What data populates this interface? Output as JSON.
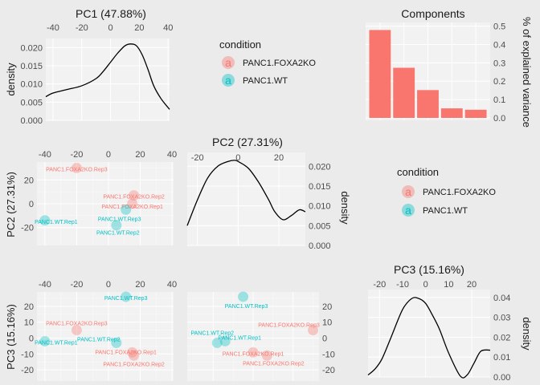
{
  "colors": {
    "PANC1.FOXA2KO": "#f8766d",
    "PANC1.WT": "#00bfc4",
    "bar": "#f8766d",
    "line": "#000000"
  },
  "legend": {
    "title": "condition",
    "glyph": "a",
    "items": [
      "PANC1.FOXA2KO",
      "PANC1.WT"
    ]
  },
  "samples": [
    {
      "label": "PANC1.FOXA2KO.Rep3",
      "condition": "PANC1.FOXA2KO",
      "PC1": -20,
      "PC2": 30,
      "PC3": 5
    },
    {
      "label": "PANC1.FOXA2KO.Rep2",
      "condition": "PANC1.FOXA2KO",
      "PC1": 16,
      "PC2": 7,
      "PC3": -11
    },
    {
      "label": "PANC1.FOXA2KO.Rep1",
      "condition": "PANC1.FOXA2KO",
      "PC1": 15,
      "PC2": 0,
      "PC3": -9
    },
    {
      "label": "PANC1.WT.Rep3",
      "condition": "PANC1.WT",
      "PC1": 11,
      "PC2": -5,
      "PC3": 26
    },
    {
      "label": "PANC1.WT.Rep1",
      "condition": "PANC1.WT",
      "PC1": -40,
      "PC2": -14,
      "PC3": -2
    },
    {
      "label": "PANC1.WT.Rep2",
      "condition": "PANC1.WT",
      "PC1": 5,
      "PC2": -18,
      "PC3": -3
    }
  ],
  "chart_data": [
    {
      "type": "line",
      "title": "PC1 (47.88%)",
      "ylabel": "density",
      "xlim": [
        -45,
        41
      ],
      "ylim": [
        0,
        0.0225
      ],
      "xticks": [
        -40,
        -20,
        0,
        20,
        40
      ],
      "yticks": [
        "0.000",
        "0.005",
        "0.010",
        "0.015",
        "0.020"
      ],
      "x": [
        -45,
        -40,
        -30,
        -20,
        -10,
        -5,
        0,
        5,
        10,
        14,
        18,
        22,
        26,
        30,
        35,
        41
      ],
      "y": [
        0.0065,
        0.0075,
        0.0085,
        0.0095,
        0.0115,
        0.0135,
        0.016,
        0.0185,
        0.0205,
        0.021,
        0.0205,
        0.018,
        0.014,
        0.0095,
        0.006,
        0.003
      ]
    },
    {
      "type": "line",
      "title": "PC2 (27.31%)",
      "ylabel": "density",
      "xlim": [
        -25,
        33
      ],
      "ylim": [
        0,
        0.0235
      ],
      "xticks": [
        -20,
        0,
        20
      ],
      "yticks": [
        "0.000",
        "0.005",
        "0.010",
        "0.015",
        "0.020"
      ],
      "x": [
        -25,
        -20,
        -15,
        -10,
        -5,
        -2,
        0,
        5,
        10,
        15,
        18,
        22,
        26,
        30,
        33
      ],
      "y": [
        0.005,
        0.0115,
        0.017,
        0.02,
        0.0212,
        0.0215,
        0.0212,
        0.0195,
        0.016,
        0.0115,
        0.0085,
        0.0065,
        0.0075,
        0.009,
        0.0085
      ]
    },
    {
      "type": "line",
      "title": "PC3 (15.16%)",
      "ylabel": "density",
      "xlim": [
        -25,
        28
      ],
      "ylim": [
        0,
        0.044
      ],
      "xticks": [
        -20,
        -10,
        0,
        10,
        20
      ],
      "yticks": [
        "0.00",
        "0.01",
        "0.02",
        "0.03",
        "0.04"
      ],
      "x": [
        -25,
        -22,
        -19,
        -15,
        -10,
        -6,
        -3,
        0,
        3,
        6,
        10,
        15,
        18,
        21,
        24,
        28
      ],
      "y": [
        0.001,
        0.004,
        0.009,
        0.02,
        0.034,
        0.0395,
        0.0395,
        0.037,
        0.031,
        0.024,
        0.012,
        0.0005,
        0.001,
        0.007,
        0.013,
        0.0135
      ]
    },
    {
      "type": "bar",
      "title": "Components",
      "ylabel": "% of explained variance",
      "ylim": [
        0,
        0.52
      ],
      "yticks": [
        "0.0",
        "0.1",
        "0.2",
        "0.3",
        "0.4",
        "0.5"
      ],
      "values": [
        0.4788,
        0.2731,
        0.1516,
        0.052,
        0.0445
      ]
    },
    {
      "type": "scatter",
      "xvar": "PC1",
      "yvar": "PC2",
      "ylabel": "PC2 (27.31%)",
      "xlim": [
        -45,
        41
      ],
      "ylim": [
        -35,
        35
      ],
      "xticks": [
        -40,
        -20,
        0,
        20,
        40
      ],
      "yticks": [
        "20",
        "0",
        "-20"
      ]
    },
    {
      "type": "scatter",
      "xvar": "PC1",
      "yvar": "PC3",
      "ylabel": "PC3 (15.16%)",
      "xlim": [
        -45,
        41
      ],
      "ylim": [
        -27,
        29
      ],
      "xticks": [
        -40,
        -20,
        0,
        20,
        40
      ],
      "yticks": [
        "20",
        "10",
        "0",
        "-10",
        "-20"
      ]
    },
    {
      "type": "scatter",
      "xvar": "PC2",
      "yvar": "PC3",
      "xlim": [
        -33,
        33
      ],
      "ylim": [
        -27,
        29
      ],
      "yticks": [
        "20",
        "10",
        "0",
        "-10",
        "-20"
      ]
    }
  ]
}
